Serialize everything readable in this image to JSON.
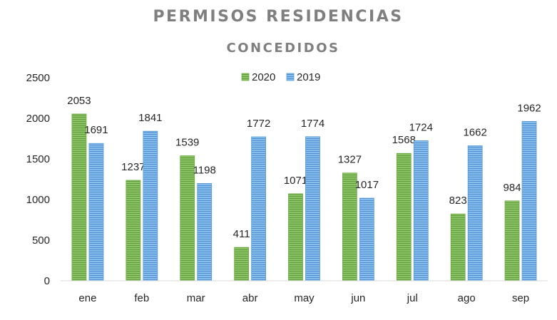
{
  "chart_data": {
    "type": "bar",
    "title": "PERMISOS RESIDENCIAS",
    "subtitle": "CONCEDIDOS",
    "xlabel": "",
    "ylabel": "",
    "categories": [
      "ene",
      "feb",
      "mar",
      "abr",
      "may",
      "jun",
      "jul",
      "ago",
      "sep"
    ],
    "series": [
      {
        "name": "2020",
        "values": [
          2053,
          1237,
          1539,
          411,
          1071,
          1327,
          1568,
          823,
          984
        ],
        "color": "#70ad47"
      },
      {
        "name": "2019",
        "values": [
          1691,
          1841,
          1198,
          1772,
          1774,
          1017,
          1724,
          1662,
          1962
        ],
        "color": "#5b9bd5"
      }
    ],
    "ylim": [
      0,
      2500
    ],
    "yticks": [
      "0",
      "500",
      "1000",
      "1500",
      "2000",
      "2500"
    ],
    "grid": false,
    "legend": "top-center",
    "data_labels": true
  }
}
